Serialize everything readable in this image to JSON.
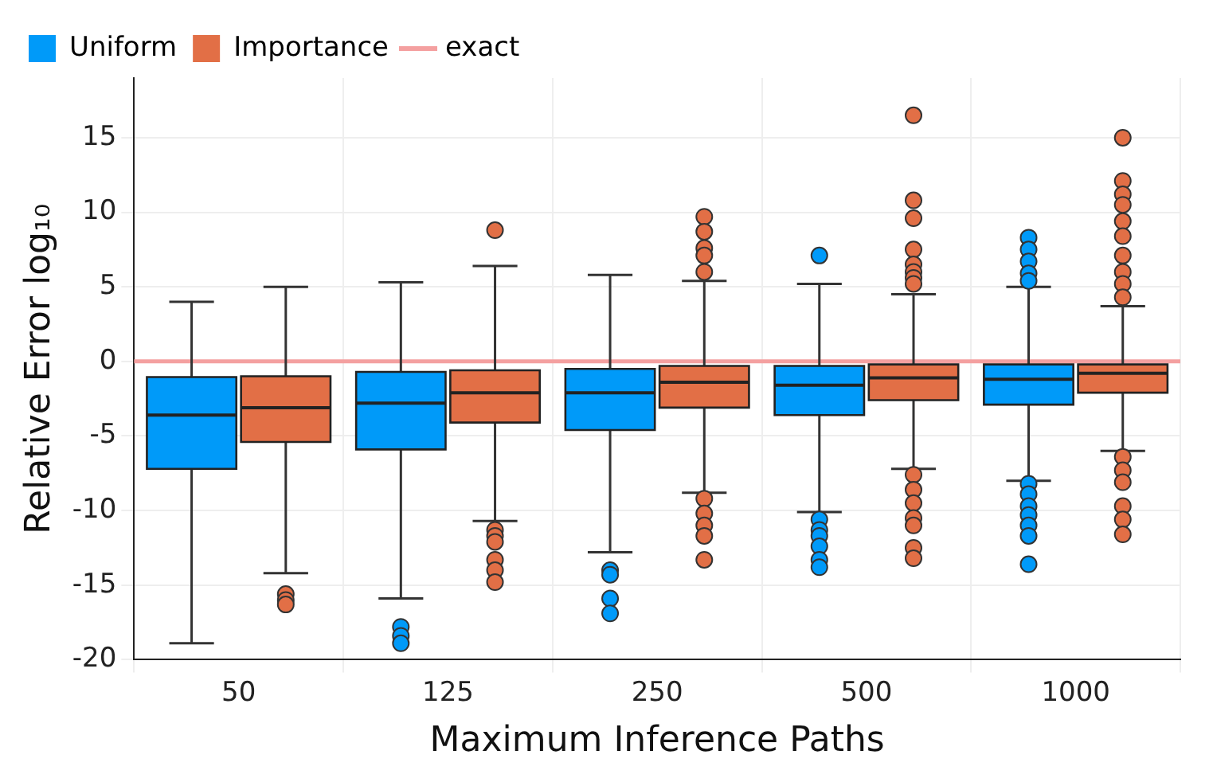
{
  "chart_data": {
    "type": "box",
    "xlabel": "Maximum Inference Paths",
    "ylabel": "Relative Error log₁₀",
    "categories": [
      "50",
      "125",
      "250",
      "500",
      "1000"
    ],
    "ylim": [
      -20,
      19
    ],
    "yticks": [
      -20,
      -15,
      -10,
      -5,
      0,
      5,
      10,
      15
    ],
    "grid": true,
    "legend": "top left",
    "marker": "circle",
    "ref_lines": [
      {
        "axis": "y",
        "value": 0,
        "label": "exact",
        "color": "#f4a0a0"
      }
    ],
    "series": [
      {
        "name": "Uniform",
        "color": "#009af9",
        "boxes": [
          {
            "low": -18.9,
            "q1": -7.2,
            "median": -3.6,
            "q3": -1.05,
            "high": 4.0
          },
          {
            "low": -15.9,
            "q1": -5.9,
            "median": -2.8,
            "q3": -0.7,
            "high": 5.3,
            "outliers": [
              -17.8,
              -18.4,
              -18.9
            ]
          },
          {
            "low": -12.8,
            "q1": -4.6,
            "median": -2.1,
            "q3": -0.5,
            "high": 5.8,
            "outliers": [
              -14.0,
              -14.3,
              -15.9,
              -16.9
            ]
          },
          {
            "low": -10.1,
            "q1": -3.6,
            "median": -1.6,
            "q3": -0.3,
            "high": 5.2,
            "outliers": [
              7.1,
              -10.6,
              -11.3,
              -11.7,
              -12.4,
              -13.3,
              -13.8
            ]
          },
          {
            "low": -8.0,
            "q1": -2.9,
            "median": -1.2,
            "q3": -0.2,
            "high": 5.0,
            "outliers": [
              8.3,
              7.5,
              6.7,
              5.9,
              5.4,
              -8.2,
              -8.9,
              -9.7,
              -10.3,
              -11.0,
              -11.7,
              -13.6
            ]
          }
        ]
      },
      {
        "name": "Importance",
        "color": "#e26f46",
        "boxes": [
          {
            "low": -14.2,
            "q1": -5.4,
            "median": -3.1,
            "q3": -1.0,
            "high": 5.0,
            "outliers": [
              -15.6,
              -16.0,
              -16.3
            ]
          },
          {
            "low": -10.7,
            "q1": -4.1,
            "median": -2.1,
            "q3": -0.6,
            "high": 6.4,
            "outliers": [
              8.8,
              -11.3,
              -11.7,
              -12.1,
              -13.3,
              -14.0,
              -14.8
            ]
          },
          {
            "low": -8.8,
            "q1": -3.1,
            "median": -1.4,
            "q3": -0.3,
            "high": 5.4,
            "outliers": [
              9.7,
              8.7,
              7.6,
              7.1,
              6.0,
              -9.2,
              -10.2,
              -11.0,
              -11.7,
              -13.3
            ]
          },
          {
            "low": -7.2,
            "q1": -2.6,
            "median": -1.1,
            "q3": -0.2,
            "high": 4.5,
            "outliers": [
              16.5,
              10.8,
              9.6,
              7.5,
              6.5,
              6.0,
              5.6,
              5.2,
              -7.6,
              -8.6,
              -9.5,
              -10.5,
              -11.0,
              -12.5,
              -13.2
            ]
          },
          {
            "low": -6.0,
            "q1": -2.1,
            "median": -0.8,
            "q3": -0.2,
            "high": 3.7,
            "outliers": [
              15.0,
              12.1,
              11.2,
              10.5,
              9.4,
              8.4,
              7.1,
              6.0,
              5.2,
              4.3,
              -6.4,
              -7.3,
              -8.1,
              -9.7,
              -10.6,
              -11.6
            ]
          }
        ]
      }
    ]
  }
}
